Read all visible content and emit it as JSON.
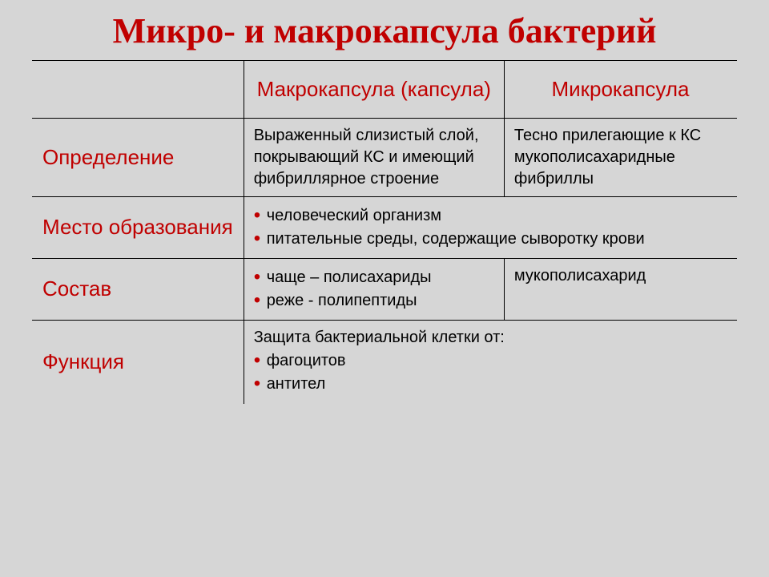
{
  "title": "Микро- и макрокапсула бактерий",
  "colors": {
    "accent": "#c00000",
    "background": "#d6d6d6",
    "text": "#000000",
    "border": "#000000"
  },
  "typography": {
    "title_family": "Georgia, Times New Roman, serif",
    "body_family": "Arial, Helvetica, sans-serif",
    "title_size_pt": 33,
    "header_size_pt": 20,
    "rowlabel_size_pt": 20,
    "body_size_pt": 15
  },
  "table": {
    "type": "table",
    "column_widths_pct": [
      30,
      37,
      33
    ],
    "columns": [
      "",
      "Макрокапсула (капсула)",
      "Микрокапсула"
    ],
    "rows": [
      {
        "label": "Определение",
        "macro": "Выраженный слизистый слой, покрывающий КС и имеющий фибриллярное строение",
        "micro": "Тесно прилегающие к КС мукополисахаридные фибриллы",
        "span": false
      },
      {
        "label": "Место образования",
        "bullets": [
          "человеческий организм",
          "питательные среды, содержащие сыворотку крови"
        ],
        "span": true
      },
      {
        "label": "Состав",
        "macro_bullets": [
          "чаще – полисахариды",
          "реже - полипептиды"
        ],
        "micro": "мукополисахарид",
        "span": false
      },
      {
        "label": "Функция",
        "lead": "Защита бактериальной клетки от:",
        "bullets": [
          "фагоцитов",
          "антител"
        ],
        "span": true
      }
    ]
  }
}
